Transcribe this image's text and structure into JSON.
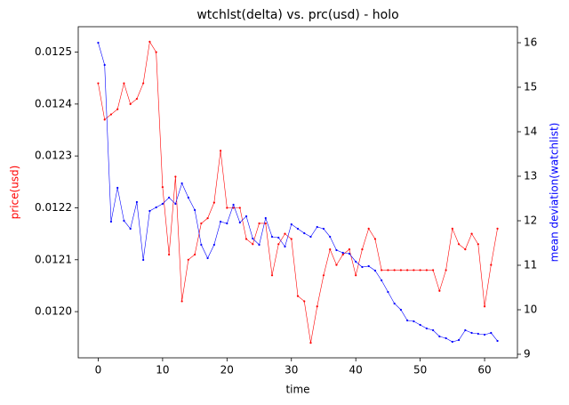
{
  "chart_data": {
    "type": "line",
    "title": "wtchlst(delta) vs. prc(usd) - holo",
    "xlabel": "time",
    "ylabel": "price(usd)",
    "y2label": "mean deviation(watchlist)",
    "ylabel_color": "red",
    "y2label_color": "blue",
    "x": [
      0,
      1,
      2,
      3,
      4,
      5,
      6,
      7,
      8,
      9,
      10,
      11,
      12,
      13,
      14,
      15,
      16,
      17,
      18,
      19,
      20,
      21,
      22,
      23,
      24,
      25,
      26,
      27,
      28,
      29,
      30,
      31,
      32,
      33,
      34,
      35,
      36,
      37,
      38,
      39,
      40,
      41,
      42,
      43,
      44,
      45,
      46,
      47,
      48,
      49,
      50,
      51,
      52,
      53,
      54,
      55,
      56,
      57,
      58,
      59,
      60,
      61,
      62
    ],
    "series": [
      {
        "color": "red",
        "values": [
          0.01244,
          0.01237,
          0.01238,
          0.01239,
          0.01244,
          0.0124,
          0.01241,
          0.01244,
          0.01252,
          0.0125,
          0.01224,
          0.01211,
          0.01226,
          0.01202,
          0.0121,
          0.01211,
          0.01217,
          0.01218,
          0.01221,
          0.01231,
          0.0122,
          0.0122,
          0.0122,
          0.01214,
          0.01213,
          0.01217,
          0.01217,
          0.01207,
          0.01213,
          0.01215,
          0.01214,
          0.01203,
          0.01202,
          0.01194,
          0.01201,
          0.01207,
          0.01212,
          0.01209,
          0.01211,
          0.01212,
          0.01207,
          0.01212,
          0.01216,
          0.01214,
          0.01208,
          0.01208,
          0.01208,
          0.01208,
          0.01208,
          0.01208,
          0.01208,
          0.01208,
          0.01208,
          0.01204,
          0.01208,
          0.01216,
          0.01213,
          0.01212,
          0.01215,
          0.01213,
          0.01201,
          0.01209,
          0.01216
        ]
      },
      {
        "color": "blue",
        "axis": "y2",
        "values": [
          16.0,
          15.5,
          11.98,
          12.74,
          12.0,
          11.82,
          12.42,
          11.12,
          12.22,
          12.3,
          12.38,
          12.52,
          12.38,
          12.84,
          12.52,
          12.24,
          11.46,
          11.16,
          11.46,
          11.98,
          11.94,
          12.36,
          11.96,
          12.1,
          11.6,
          11.46,
          12.06,
          11.64,
          11.62,
          11.42,
          11.92,
          11.82,
          11.72,
          11.64,
          11.86,
          11.82,
          11.64,
          11.34,
          11.28,
          11.26,
          11.08,
          10.96,
          10.98,
          10.88,
          10.66,
          10.4,
          10.14,
          10.0,
          9.76,
          9.74,
          9.66,
          9.58,
          9.54,
          9.4,
          9.36,
          9.28,
          9.32,
          9.54,
          9.48,
          9.46,
          9.44,
          9.48,
          9.3
        ]
      }
    ],
    "xlim": [
      -3.1,
      65.1
    ],
    "xticks": [
      0,
      10,
      20,
      30,
      40,
      50,
      60
    ],
    "ylim": [
      0.011911,
      0.012549
    ],
    "yticks": [
      {
        "value": 0.012,
        "label": "0.0120"
      },
      0.0121,
      0.0122,
      0.0123,
      0.0124,
      0.0125
    ],
    "y2lim": [
      8.92,
      16.36
    ],
    "y2ticks": [
      9,
      10,
      11,
      12,
      13,
      14,
      15,
      16
    ],
    "grid": false
  }
}
